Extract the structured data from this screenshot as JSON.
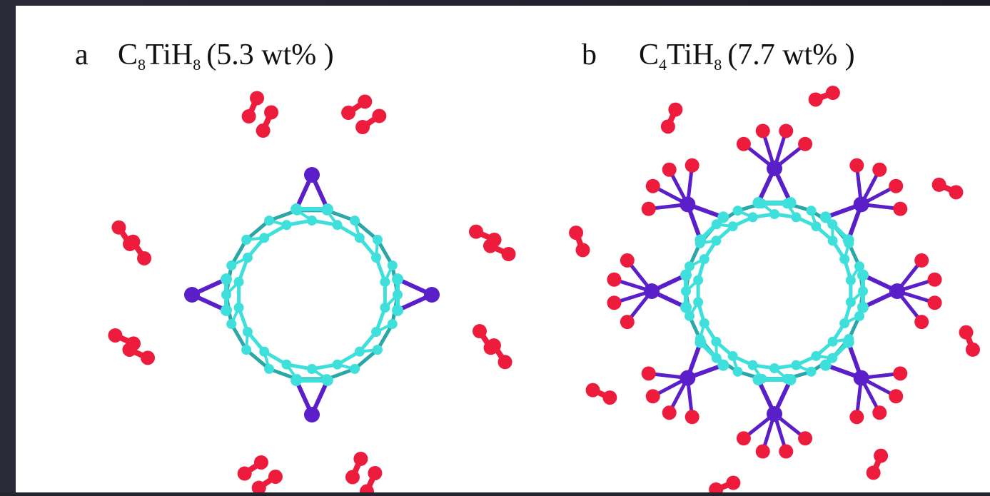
{
  "panels": [
    {
      "label": "a",
      "formula": [
        "C",
        "8",
        "TiH",
        "8"
      ],
      "note": "(5.3 wt% )"
    },
    {
      "label": "b",
      "formula": [
        "C",
        "4",
        "TiH",
        "8"
      ],
      "note": "(7.7 wt% )"
    }
  ]
}
